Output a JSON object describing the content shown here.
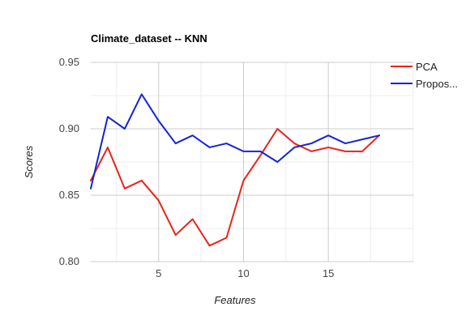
{
  "chart_data": {
    "type": "line",
    "title": "Climate_dataset -- KNN",
    "xlabel": "Features",
    "ylabel": "Scores",
    "xlim": [
      1,
      18
    ],
    "ylim": [
      0.8,
      0.95
    ],
    "x_ticks": [
      5,
      10,
      15
    ],
    "x_tick_labels": [
      "5",
      "10",
      "15"
    ],
    "y_ticks": [
      0.8,
      0.85,
      0.9,
      0.95
    ],
    "y_tick_labels": [
      "0.80",
      "0.85",
      "0.90",
      "0.95"
    ],
    "grid": true,
    "legend_position": "right",
    "x": [
      1,
      2,
      3,
      4,
      5,
      6,
      7,
      8,
      9,
      10,
      11,
      12,
      13,
      14,
      15,
      16,
      17,
      18
    ],
    "series": [
      {
        "name": "PCA",
        "color": "#e8231a",
        "values": [
          0.861,
          0.886,
          0.855,
          0.861,
          0.846,
          0.82,
          0.832,
          0.812,
          0.818,
          0.861,
          0.88,
          0.9,
          0.889,
          0.883,
          0.886,
          0.883,
          0.883,
          0.895
        ]
      },
      {
        "name": "Propos...",
        "color": "#1524d1",
        "values": [
          0.855,
          0.909,
          0.9,
          0.926,
          0.906,
          0.889,
          0.895,
          0.886,
          0.889,
          0.883,
          0.883,
          0.875,
          0.886,
          0.889,
          0.895,
          0.889,
          0.892,
          0.895
        ]
      }
    ]
  }
}
